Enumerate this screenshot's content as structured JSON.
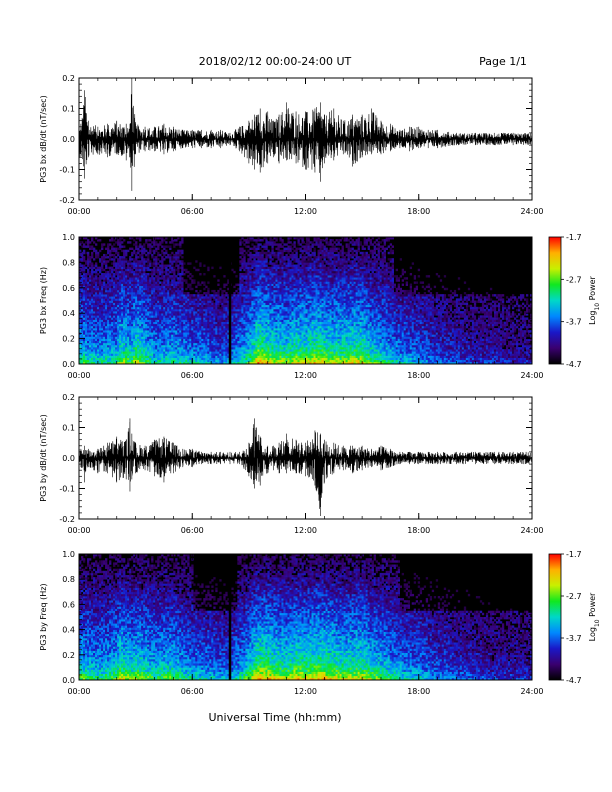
{
  "header": {
    "title": "2018/02/12  00:00-24:00 UT",
    "page": "Page 1/1"
  },
  "xlabel": "Universal Time (hh:mm)",
  "x_ticks": [
    "00:00",
    "06:00",
    "12:00",
    "18:00",
    "24:00"
  ],
  "chart_data": [
    {
      "type": "line",
      "ylabel": "PG3 bx dB/dt (nT/sec)",
      "xlim": [
        0,
        24
      ],
      "ylim": [
        -0.2,
        0.2
      ],
      "yticks": [
        "-0.2",
        "-0.1",
        "0.0",
        "0.1",
        "0.2"
      ],
      "series": [
        {
          "x": [
            0.1,
            0.3,
            0.5,
            1.0,
            1.5,
            2.0,
            2.5,
            2.7,
            2.8,
            3.0,
            3.5,
            4.0,
            4.5,
            5.0,
            5.5,
            6.0,
            6.5,
            7.0,
            7.5,
            8.0,
            8.5,
            9.0,
            9.3,
            9.6,
            10.0,
            10.3,
            10.6,
            11.0,
            11.5,
            12.0,
            12.5,
            12.8,
            13.0,
            13.5,
            14.0,
            14.5,
            15.0,
            15.5,
            16.0,
            16.5,
            17.0,
            17.5,
            18.0,
            18.5,
            19.0,
            20.0,
            21.0,
            22.0,
            23.0,
            24.0
          ],
          "env_max": [
            0.05,
            0.16,
            0.06,
            0.04,
            0.05,
            0.06,
            0.05,
            0.05,
            0.2,
            0.05,
            0.04,
            0.04,
            0.05,
            0.04,
            0.03,
            0.03,
            0.03,
            0.03,
            0.03,
            0.02,
            0.04,
            0.06,
            0.08,
            0.1,
            0.09,
            0.06,
            0.08,
            0.12,
            0.09,
            0.09,
            0.1,
            0.12,
            0.08,
            0.1,
            0.06,
            0.08,
            0.08,
            0.1,
            0.06,
            0.05,
            0.03,
            0.04,
            0.04,
            0.03,
            0.03,
            0.02,
            0.02,
            0.02,
            0.02,
            0.02
          ],
          "env_min": [
            -0.06,
            -0.13,
            -0.06,
            -0.05,
            -0.06,
            -0.05,
            -0.07,
            -0.06,
            -0.17,
            -0.05,
            -0.04,
            -0.04,
            -0.05,
            -0.04,
            -0.03,
            -0.03,
            -0.03,
            -0.03,
            -0.03,
            -0.02,
            -0.04,
            -0.08,
            -0.1,
            -0.11,
            -0.08,
            -0.06,
            -0.08,
            -0.07,
            -0.08,
            -0.1,
            -0.11,
            -0.14,
            -0.08,
            -0.07,
            -0.05,
            -0.09,
            -0.06,
            -0.05,
            -0.05,
            -0.04,
            -0.03,
            -0.04,
            -0.03,
            -0.03,
            -0.03,
            -0.02,
            -0.02,
            -0.02,
            -0.02,
            -0.02
          ]
        }
      ]
    },
    {
      "type": "heatmap",
      "ylabel": "PG3 bx Freq (Hz)",
      "xlim": [
        0,
        24
      ],
      "ylim": [
        0.0,
        1.0
      ],
      "yticks": [
        "0.0",
        "0.2",
        "0.4",
        "0.6",
        "0.8",
        "1.0"
      ],
      "colorbar": {
        "label": "Log10 Power",
        "range": [
          -4.7,
          -1.7
        ],
        "ticks": [
          "-1.7",
          "-2.7",
          "-3.7",
          "-4.7"
        ],
        "colors": [
          "#000000",
          "#3a0070",
          "#1a18c8",
          "#0088ff",
          "#00d8c8",
          "#10e820",
          "#c8f000",
          "#ffb000",
          "#ff0000"
        ]
      },
      "power_activity": {
        "hours": [
          0,
          1,
          2,
          2.2,
          2.8,
          3.0,
          4,
          5,
          5.5,
          6,
          7,
          7.5,
          8,
          9,
          9.5,
          10,
          11,
          11.5,
          12,
          12.5,
          13,
          13.5,
          14,
          15,
          15.5,
          16,
          17,
          18,
          19,
          20,
          21,
          22,
          23,
          24
        ],
        "level": [
          0.7,
          0.6,
          0.65,
          0.85,
          0.7,
          0.9,
          0.6,
          0.65,
          0.6,
          0.55,
          0.5,
          0.45,
          0.5,
          0.7,
          1.0,
          0.9,
          0.8,
          0.9,
          0.85,
          0.95,
          0.9,
          0.85,
          0.85,
          0.9,
          0.75,
          0.7,
          0.55,
          0.5,
          0.4,
          0.35,
          0.3,
          0.3,
          0.25,
          0.25
        ]
      },
      "data_gap_hour": 8.0
    },
    {
      "type": "line",
      "ylabel": "PG3 by dB/dt (nT/sec)",
      "xlim": [
        0,
        24
      ],
      "ylim": [
        -0.2,
        0.2
      ],
      "yticks": [
        "-0.2",
        "-0.1",
        "0.0",
        "0.1",
        "0.2"
      ],
      "series": [
        {
          "x": [
            0.1,
            0.3,
            0.5,
            1.0,
            1.5,
            2.0,
            2.5,
            2.7,
            2.8,
            3.0,
            3.5,
            4.0,
            4.5,
            5.0,
            5.5,
            6.0,
            6.5,
            7.0,
            7.5,
            8.0,
            8.5,
            9.0,
            9.3,
            9.6,
            10.0,
            10.3,
            10.6,
            11.0,
            11.5,
            12.0,
            12.5,
            12.8,
            13.0,
            13.5,
            14.0,
            14.5,
            15.0,
            15.5,
            16.0,
            16.5,
            17.0,
            17.5,
            18.0,
            18.5,
            19.0,
            20.0,
            21.0,
            22.0,
            23.0,
            24.0
          ],
          "env_max": [
            0.03,
            0.04,
            0.03,
            0.03,
            0.05,
            0.07,
            0.06,
            0.13,
            0.08,
            0.05,
            0.04,
            0.06,
            0.07,
            0.05,
            0.03,
            0.03,
            0.02,
            0.02,
            0.02,
            0.02,
            0.02,
            0.05,
            0.13,
            0.07,
            0.04,
            0.04,
            0.05,
            0.08,
            0.06,
            0.05,
            0.09,
            0.08,
            0.06,
            0.05,
            0.04,
            0.04,
            0.04,
            0.03,
            0.04,
            0.03,
            0.02,
            0.02,
            0.02,
            0.02,
            0.02,
            0.02,
            0.02,
            0.02,
            0.02,
            0.02
          ],
          "env_min": [
            -0.03,
            -0.08,
            -0.03,
            -0.05,
            -0.05,
            -0.08,
            -0.07,
            -0.11,
            -0.07,
            -0.05,
            -0.04,
            -0.06,
            -0.08,
            -0.05,
            -0.03,
            -0.03,
            -0.02,
            -0.02,
            -0.02,
            -0.02,
            -0.02,
            -0.06,
            -0.1,
            -0.09,
            -0.05,
            -0.04,
            -0.05,
            -0.05,
            -0.05,
            -0.06,
            -0.09,
            -0.19,
            -0.08,
            -0.05,
            -0.04,
            -0.05,
            -0.04,
            -0.03,
            -0.04,
            -0.03,
            -0.02,
            -0.02,
            -0.02,
            -0.02,
            -0.02,
            -0.02,
            -0.02,
            -0.02,
            -0.02,
            -0.02
          ]
        }
      ]
    },
    {
      "type": "heatmap",
      "ylabel": "PG3 by Freq (Hz)",
      "xlim": [
        0,
        24
      ],
      "ylim": [
        0.0,
        1.0
      ],
      "yticks": [
        "0.0",
        "0.2",
        "0.4",
        "0.6",
        "0.8",
        "1.0"
      ],
      "colorbar": {
        "label": "Log10 Power",
        "range": [
          -4.7,
          -1.7
        ],
        "ticks": [
          "-1.7",
          "-2.7",
          "-3.7",
          "-4.7"
        ],
        "colors": [
          "#000000",
          "#3a0070",
          "#1a18c8",
          "#0088ff",
          "#00d8c8",
          "#10e820",
          "#c8f000",
          "#ffb000",
          "#ff0000"
        ]
      },
      "power_activity": {
        "hours": [
          0,
          1,
          2,
          2.2,
          2.8,
          3.0,
          4,
          5,
          5.5,
          6,
          7,
          7.5,
          8,
          9,
          9.5,
          10,
          11,
          11.5,
          12,
          12.5,
          13,
          13.5,
          14,
          15,
          15.5,
          16,
          17,
          18,
          19,
          20,
          21,
          22,
          23,
          24
        ],
        "level": [
          0.75,
          0.65,
          0.75,
          0.9,
          0.75,
          0.85,
          0.7,
          0.75,
          0.65,
          0.6,
          0.55,
          0.5,
          0.5,
          0.75,
          1.0,
          0.95,
          0.85,
          0.95,
          0.9,
          0.95,
          0.95,
          0.9,
          0.85,
          0.9,
          0.8,
          0.75,
          0.6,
          0.55,
          0.45,
          0.4,
          0.35,
          0.3,
          0.3,
          0.3
        ]
      },
      "data_gap_hour": 8.0
    }
  ]
}
